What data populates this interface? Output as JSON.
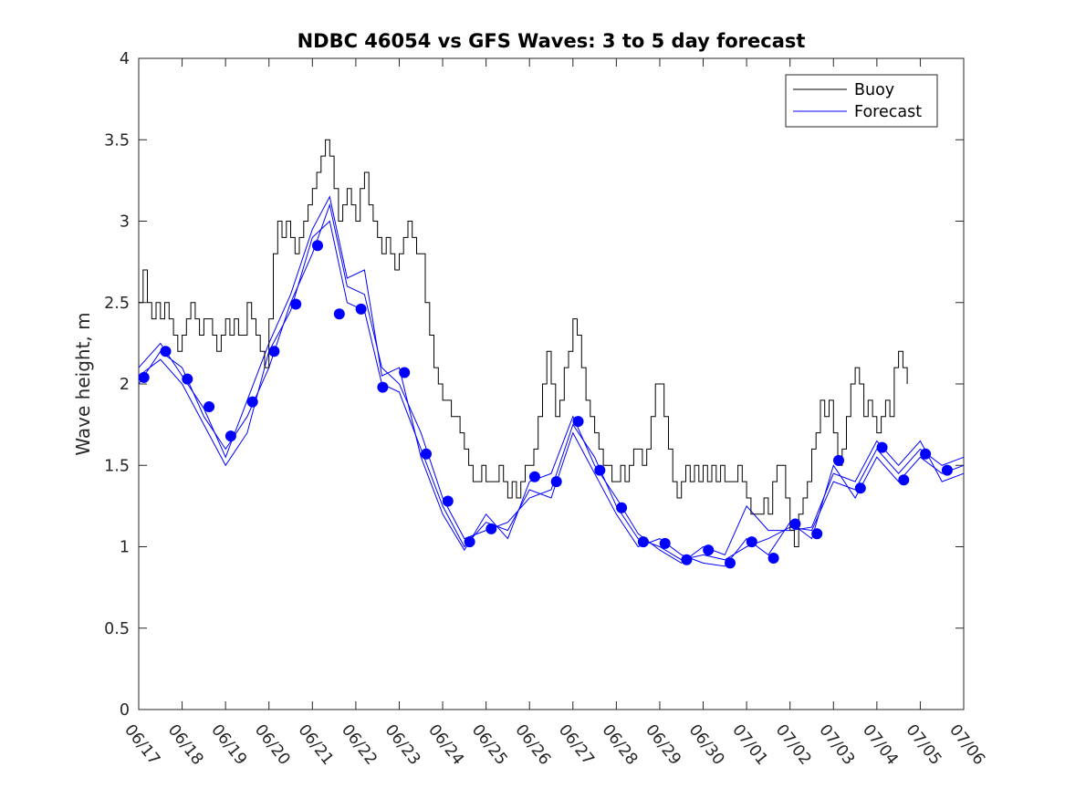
{
  "chart_data": {
    "type": "line",
    "title": "NDBC 46054 vs GFS Waves: 3 to 5 day forecast",
    "xlabel": "",
    "ylabel": "Wave height, m",
    "x_ticks": [
      "06/17",
      "06/18",
      "06/19",
      "06/20",
      "06/21",
      "06/22",
      "06/23",
      "06/24",
      "06/25",
      "06/26",
      "06/27",
      "06/28",
      "06/29",
      "06/30",
      "07/01",
      "07/02",
      "07/03",
      "07/04",
      "07/05",
      "07/06"
    ],
    "y_ticks": [
      "0",
      "0.5",
      "1",
      "1.5",
      "2",
      "2.5",
      "3",
      "3.5",
      "4"
    ],
    "xlim": [
      0,
      19
    ],
    "ylim": [
      0,
      4
    ],
    "legend_position": "top-right",
    "legend": [
      {
        "label": "Buoy",
        "color": "#000000"
      },
      {
        "label": "Forecast",
        "color": "#0000ff"
      }
    ],
    "colors": {
      "buoy": "#000000",
      "forecast": "#0000ff"
    },
    "buoy": {
      "name": "Buoy",
      "points": [
        [
          0.0,
          2.5
        ],
        [
          0.1,
          2.7
        ],
        [
          0.2,
          2.5
        ],
        [
          0.3,
          2.4
        ],
        [
          0.4,
          2.5
        ],
        [
          0.5,
          2.4
        ],
        [
          0.6,
          2.5
        ],
        [
          0.7,
          2.4
        ],
        [
          0.8,
          2.3
        ],
        [
          0.9,
          2.2
        ],
        [
          1.0,
          2.3
        ],
        [
          1.1,
          2.4
        ],
        [
          1.2,
          2.5
        ],
        [
          1.3,
          2.4
        ],
        [
          1.4,
          2.3
        ],
        [
          1.5,
          2.4
        ],
        [
          1.6,
          2.4
        ],
        [
          1.7,
          2.3
        ],
        [
          1.8,
          2.2
        ],
        [
          1.9,
          2.3
        ],
        [
          2.0,
          2.4
        ],
        [
          2.1,
          2.3
        ],
        [
          2.2,
          2.4
        ],
        [
          2.3,
          2.3
        ],
        [
          2.4,
          2.3
        ],
        [
          2.5,
          2.5
        ],
        [
          2.6,
          2.4
        ],
        [
          2.7,
          2.3
        ],
        [
          2.8,
          2.2
        ],
        [
          2.9,
          2.1
        ],
        [
          3.0,
          2.4
        ],
        [
          3.1,
          2.8
        ],
        [
          3.2,
          3.0
        ],
        [
          3.3,
          2.9
        ],
        [
          3.4,
          3.0
        ],
        [
          3.5,
          2.9
        ],
        [
          3.6,
          2.8
        ],
        [
          3.7,
          2.9
        ],
        [
          3.8,
          3.0
        ],
        [
          3.9,
          3.1
        ],
        [
          4.0,
          3.2
        ],
        [
          4.1,
          3.3
        ],
        [
          4.2,
          3.4
        ],
        [
          4.3,
          3.5
        ],
        [
          4.4,
          3.4
        ],
        [
          4.5,
          3.2
        ],
        [
          4.6,
          3.0
        ],
        [
          4.7,
          3.1
        ],
        [
          4.8,
          3.2
        ],
        [
          4.9,
          3.1
        ],
        [
          5.0,
          3.0
        ],
        [
          5.1,
          3.2
        ],
        [
          5.2,
          3.3
        ],
        [
          5.3,
          3.1
        ],
        [
          5.4,
          3.0
        ],
        [
          5.5,
          2.9
        ],
        [
          5.6,
          2.8
        ],
        [
          5.7,
          2.9
        ],
        [
          5.8,
          2.8
        ],
        [
          5.9,
          2.7
        ],
        [
          6.0,
          2.8
        ],
        [
          6.1,
          2.9
        ],
        [
          6.2,
          3.0
        ],
        [
          6.3,
          2.9
        ],
        [
          6.4,
          2.8
        ],
        [
          6.5,
          2.8
        ],
        [
          6.6,
          2.5
        ],
        [
          6.7,
          2.3
        ],
        [
          6.8,
          2.1
        ],
        [
          6.9,
          2.0
        ],
        [
          7.0,
          1.9
        ],
        [
          7.1,
          1.9
        ],
        [
          7.2,
          1.8
        ],
        [
          7.3,
          1.8
        ],
        [
          7.4,
          1.7
        ],
        [
          7.5,
          1.6
        ],
        [
          7.6,
          1.5
        ],
        [
          7.7,
          1.4
        ],
        [
          7.8,
          1.4
        ],
        [
          7.9,
          1.5
        ],
        [
          8.0,
          1.4
        ],
        [
          8.1,
          1.4
        ],
        [
          8.2,
          1.4
        ],
        [
          8.3,
          1.5
        ],
        [
          8.4,
          1.4
        ],
        [
          8.5,
          1.3
        ],
        [
          8.6,
          1.4
        ],
        [
          8.7,
          1.3
        ],
        [
          8.8,
          1.4
        ],
        [
          8.9,
          1.5
        ],
        [
          9.0,
          1.5
        ],
        [
          9.1,
          1.6
        ],
        [
          9.2,
          1.8
        ],
        [
          9.3,
          2.0
        ],
        [
          9.4,
          2.2
        ],
        [
          9.5,
          2.0
        ],
        [
          9.6,
          1.8
        ],
        [
          9.7,
          1.9
        ],
        [
          9.8,
          2.1
        ],
        [
          9.9,
          2.2
        ],
        [
          10.0,
          2.4
        ],
        [
          10.1,
          2.3
        ],
        [
          10.2,
          2.1
        ],
        [
          10.3,
          1.9
        ],
        [
          10.4,
          1.8
        ],
        [
          10.5,
          1.7
        ],
        [
          10.6,
          1.6
        ],
        [
          10.7,
          1.5
        ],
        [
          10.8,
          1.5
        ],
        [
          10.9,
          1.4
        ],
        [
          11.0,
          1.4
        ],
        [
          11.1,
          1.5
        ],
        [
          11.2,
          1.4
        ],
        [
          11.3,
          1.5
        ],
        [
          11.4,
          1.6
        ],
        [
          11.5,
          1.6
        ],
        [
          11.6,
          1.5
        ],
        [
          11.7,
          1.6
        ],
        [
          11.8,
          1.8
        ],
        [
          11.9,
          2.0
        ],
        [
          12.0,
          2.0
        ],
        [
          12.1,
          1.8
        ],
        [
          12.2,
          1.6
        ],
        [
          12.3,
          1.4
        ],
        [
          12.4,
          1.3
        ],
        [
          12.5,
          1.4
        ],
        [
          12.6,
          1.5
        ],
        [
          12.7,
          1.4
        ],
        [
          12.8,
          1.5
        ],
        [
          12.9,
          1.4
        ],
        [
          13.0,
          1.5
        ],
        [
          13.1,
          1.4
        ],
        [
          13.2,
          1.5
        ],
        [
          13.3,
          1.4
        ],
        [
          13.4,
          1.5
        ],
        [
          13.5,
          1.4
        ],
        [
          13.6,
          1.4
        ],
        [
          13.7,
          1.4
        ],
        [
          13.8,
          1.5
        ],
        [
          13.9,
          1.4
        ],
        [
          14.0,
          1.3
        ],
        [
          14.1,
          1.2
        ],
        [
          14.2,
          1.2
        ],
        [
          14.3,
          1.2
        ],
        [
          14.4,
          1.3
        ],
        [
          14.5,
          1.2
        ],
        [
          14.6,
          1.4
        ],
        [
          14.7,
          1.5
        ],
        [
          14.8,
          1.5
        ],
        [
          14.9,
          1.3
        ],
        [
          15.0,
          1.1
        ],
        [
          15.1,
          1.0
        ],
        [
          15.2,
          1.2
        ],
        [
          15.3,
          1.3
        ],
        [
          15.4,
          1.4
        ],
        [
          15.5,
          1.6
        ],
        [
          15.6,
          1.7
        ],
        [
          15.7,
          1.9
        ],
        [
          15.8,
          1.8
        ],
        [
          15.9,
          1.9
        ],
        [
          16.0,
          1.7
        ],
        [
          16.1,
          1.5
        ],
        [
          16.2,
          1.6
        ],
        [
          16.3,
          1.8
        ],
        [
          16.4,
          2.0
        ],
        [
          16.5,
          2.1
        ],
        [
          16.6,
          2.0
        ],
        [
          16.7,
          1.8
        ],
        [
          16.8,
          1.9
        ],
        [
          16.9,
          1.8
        ],
        [
          17.0,
          1.7
        ],
        [
          17.1,
          1.8
        ],
        [
          17.2,
          1.9
        ],
        [
          17.3,
          1.8
        ],
        [
          17.4,
          2.1
        ],
        [
          17.5,
          2.2
        ],
        [
          17.6,
          2.1
        ],
        [
          17.7,
          2.0
        ]
      ]
    },
    "forecast_markers": {
      "name": "Forecast",
      "points": [
        [
          0.12,
          2.04
        ],
        [
          0.62,
          2.2
        ],
        [
          1.12,
          2.03
        ],
        [
          1.62,
          1.86
        ],
        [
          2.12,
          1.68
        ],
        [
          2.62,
          1.89
        ],
        [
          3.12,
          2.2
        ],
        [
          3.62,
          2.49
        ],
        [
          4.12,
          2.85
        ],
        [
          4.62,
          2.43
        ],
        [
          5.12,
          2.46
        ],
        [
          5.62,
          1.98
        ],
        [
          6.12,
          2.07
        ],
        [
          6.62,
          1.57
        ],
        [
          7.12,
          1.28
        ],
        [
          7.62,
          1.03
        ],
        [
          8.12,
          1.11
        ],
        [
          9.12,
          1.43
        ],
        [
          9.62,
          1.4
        ],
        [
          10.12,
          1.77
        ],
        [
          10.62,
          1.47
        ],
        [
          11.12,
          1.24
        ],
        [
          11.62,
          1.03
        ],
        [
          12.12,
          1.02
        ],
        [
          12.62,
          0.92
        ],
        [
          13.12,
          0.98
        ],
        [
          13.62,
          0.9
        ],
        [
          14.12,
          1.03
        ],
        [
          14.62,
          0.93
        ],
        [
          15.12,
          1.14
        ],
        [
          15.62,
          1.08
        ],
        [
          16.12,
          1.53
        ],
        [
          16.62,
          1.36
        ],
        [
          17.12,
          1.61
        ],
        [
          17.62,
          1.41
        ],
        [
          18.12,
          1.57
        ],
        [
          18.62,
          1.47
        ]
      ]
    },
    "forecast_lines": [
      {
        "points": [
          [
            0.0,
            2.0
          ],
          [
            0.5,
            2.2
          ],
          [
            1.0,
            2.1
          ],
          [
            1.5,
            1.8
          ],
          [
            2.0,
            1.6
          ],
          [
            2.5,
            1.8
          ],
          [
            3.0,
            2.1
          ],
          [
            3.5,
            2.5
          ],
          [
            4.0,
            2.8
          ],
          [
            4.4,
            3.1
          ],
          [
            4.8,
            2.6
          ],
          [
            5.2,
            2.55
          ],
          [
            5.6,
            2.1
          ],
          [
            6.0,
            2.0
          ],
          [
            6.5,
            1.7
          ],
          [
            7.0,
            1.3
          ],
          [
            7.5,
            1.05
          ],
          [
            8.0,
            1.1
          ],
          [
            8.5,
            1.15
          ],
          [
            9.0,
            1.3
          ],
          [
            9.5,
            1.35
          ],
          [
            10.0,
            1.75
          ],
          [
            10.5,
            1.55
          ],
          [
            11.0,
            1.25
          ],
          [
            11.5,
            1.05
          ],
          [
            12.0,
            1.0
          ],
          [
            12.5,
            0.92
          ],
          [
            13.0,
            0.95
          ],
          [
            13.5,
            0.92
          ],
          [
            14.0,
            1.0
          ],
          [
            14.5,
            1.05
          ],
          [
            15.0,
            1.12
          ],
          [
            15.5,
            1.1
          ],
          [
            16.0,
            1.4
          ],
          [
            16.5,
            1.35
          ],
          [
            17.0,
            1.6
          ],
          [
            17.5,
            1.45
          ],
          [
            18.0,
            1.6
          ],
          [
            18.5,
            1.5
          ],
          [
            19.0,
            1.55
          ]
        ]
      },
      {
        "points": [
          [
            0.0,
            2.05
          ],
          [
            0.5,
            2.15
          ],
          [
            1.0,
            2.0
          ],
          [
            1.5,
            1.75
          ],
          [
            2.0,
            1.5
          ],
          [
            2.5,
            1.7
          ],
          [
            3.0,
            2.2
          ],
          [
            3.5,
            2.45
          ],
          [
            4.0,
            2.9
          ],
          [
            4.4,
            3.0
          ],
          [
            4.8,
            2.5
          ],
          [
            5.2,
            2.45
          ],
          [
            5.6,
            2.0
          ],
          [
            6.0,
            1.95
          ],
          [
            6.5,
            1.6
          ],
          [
            7.0,
            1.25
          ],
          [
            7.5,
            1.0
          ],
          [
            8.0,
            1.15
          ],
          [
            8.5,
            1.1
          ],
          [
            9.0,
            1.35
          ],
          [
            9.5,
            1.3
          ],
          [
            10.0,
            1.7
          ],
          [
            10.5,
            1.45
          ],
          [
            11.0,
            1.2
          ],
          [
            11.5,
            1.0
          ],
          [
            12.0,
            1.05
          ],
          [
            12.5,
            0.95
          ],
          [
            13.0,
            0.9
          ],
          [
            13.5,
            0.88
          ],
          [
            14.0,
            1.05
          ],
          [
            14.5,
            0.95
          ],
          [
            15.0,
            1.15
          ],
          [
            15.5,
            1.05
          ],
          [
            16.0,
            1.5
          ],
          [
            16.5,
            1.3
          ],
          [
            17.0,
            1.55
          ],
          [
            17.5,
            1.4
          ],
          [
            18.0,
            1.55
          ],
          [
            18.5,
            1.45
          ],
          [
            19.0,
            1.5
          ]
        ]
      },
      {
        "points": [
          [
            0.0,
            2.1
          ],
          [
            0.5,
            2.25
          ],
          [
            1.0,
            2.05
          ],
          [
            1.5,
            1.85
          ],
          [
            2.0,
            1.55
          ],
          [
            2.5,
            1.9
          ],
          [
            3.0,
            2.25
          ],
          [
            3.5,
            2.55
          ],
          [
            4.0,
            2.95
          ],
          [
            4.4,
            3.15
          ],
          [
            4.8,
            2.65
          ],
          [
            5.2,
            2.7
          ],
          [
            5.6,
            2.05
          ],
          [
            6.0,
            2.1
          ],
          [
            6.5,
            1.55
          ],
          [
            7.0,
            1.2
          ],
          [
            7.5,
            0.98
          ],
          [
            8.0,
            1.2
          ],
          [
            8.5,
            1.05
          ],
          [
            9.0,
            1.4
          ],
          [
            9.5,
            1.45
          ],
          [
            10.0,
            1.8
          ],
          [
            10.5,
            1.5
          ],
          [
            11.0,
            1.3
          ],
          [
            11.5,
            1.08
          ],
          [
            12.0,
            0.98
          ],
          [
            12.5,
            0.9
          ],
          [
            13.0,
            1.0
          ],
          [
            13.5,
            0.95
          ],
          [
            14.0,
            1.25
          ],
          [
            14.5,
            1.1
          ],
          [
            15.0,
            1.1
          ],
          [
            15.5,
            1.12
          ],
          [
            16.0,
            1.45
          ],
          [
            16.5,
            1.4
          ],
          [
            17.0,
            1.65
          ],
          [
            17.5,
            1.5
          ],
          [
            18.0,
            1.65
          ],
          [
            18.5,
            1.4
          ],
          [
            19.0,
            1.45
          ]
        ]
      }
    ]
  }
}
